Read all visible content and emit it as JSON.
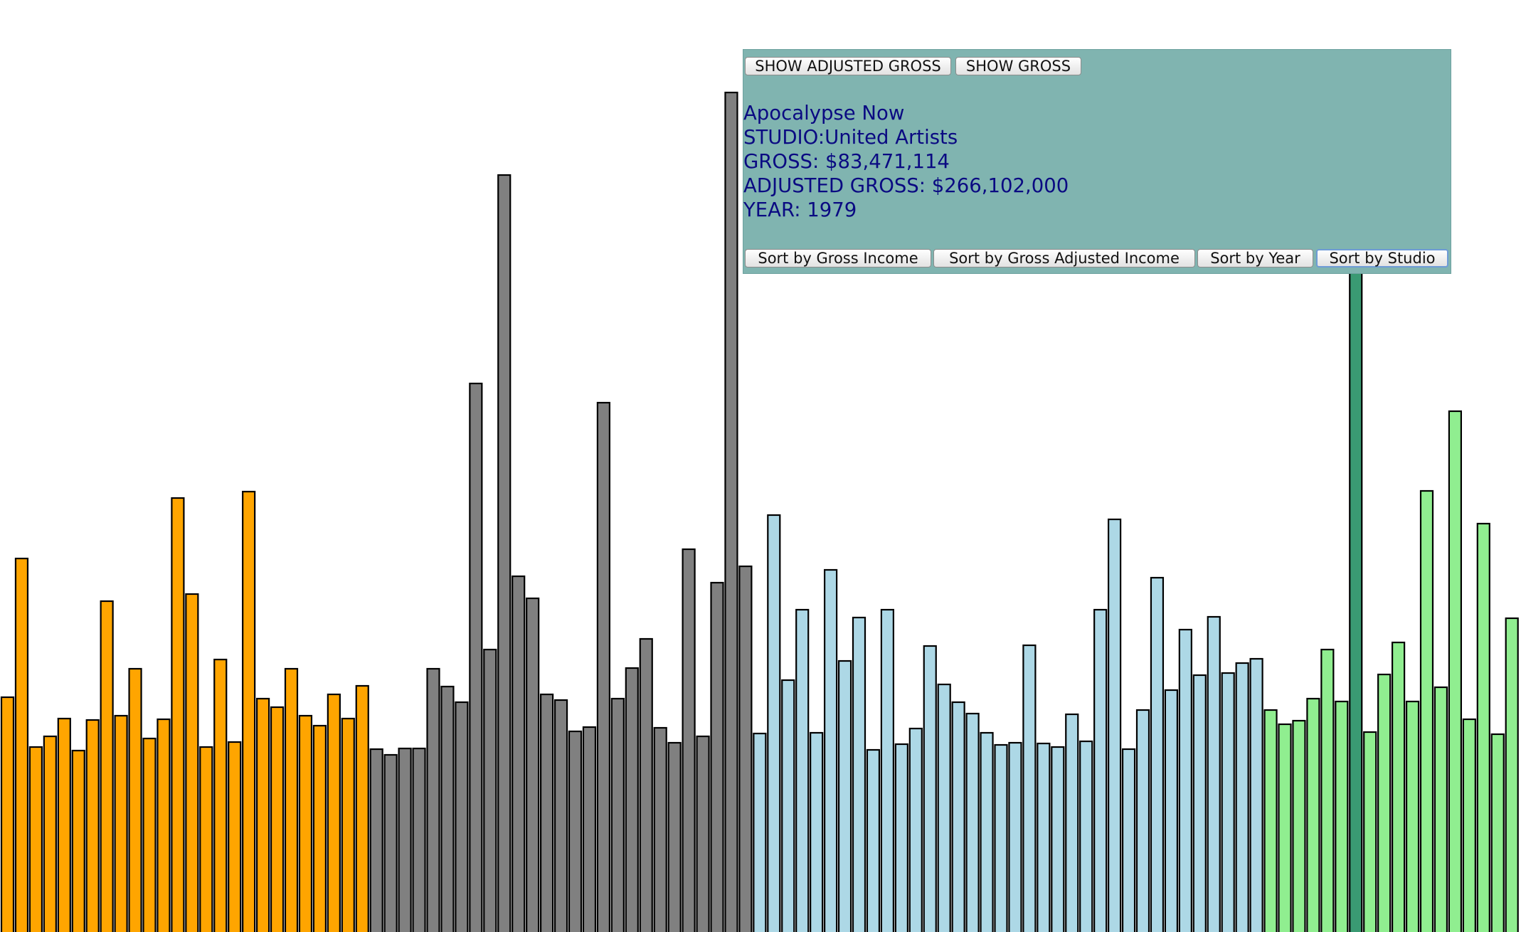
{
  "controls": {
    "show_adjusted_gross": "SHOW ADJUSTED GROSS",
    "show_gross": "SHOW GROSS",
    "sort_gross": "Sort by Gross Income",
    "sort_adjusted": "Sort by Gross Adjusted Income",
    "sort_year": "Sort by Year",
    "sort_studio": "Sort by Studio",
    "active_sort": "Sort by Studio"
  },
  "info": {
    "title": "Apocalypse Now",
    "studio": "STUDIO:United Artists",
    "gross": "GROSS: $83,471,114",
    "adjusted": "ADJUSTED GROSS: $266,102,000",
    "year": "YEAR: 1979"
  },
  "chart_data": {
    "type": "bar",
    "sort": "studio",
    "highlighted_index": 95,
    "colors": {
      "group_a": "#FFA500",
      "group_b": "#808080",
      "group_c": "#ADD8E6",
      "group_d": "#90EE90",
      "highlight": "#3a9a73"
    },
    "series": [
      {
        "color": "#FFA500",
        "values": [
          330,
          525,
          260,
          275,
          300,
          255,
          298,
          465,
          304,
          370,
          272,
          299,
          610,
          475,
          260,
          383,
          267,
          619,
          328,
          316,
          370,
          304,
          290,
          334,
          300,
          346
        ]
      },
      {
        "color": "#808080",
        "values": [
          257,
          249,
          258,
          258,
          370,
          345,
          323,
          771,
          397,
          1064,
          500,
          469,
          334,
          326,
          282,
          288,
          744,
          328,
          371,
          412,
          287,
          266,
          538,
          275,
          491,
          1180,
          514
        ]
      },
      {
        "color": "#ADD8E6",
        "values": [
          279,
          586,
          354,
          453,
          280,
          509,
          381,
          442,
          256,
          453,
          264,
          286,
          402,
          348,
          323,
          307,
          280,
          263,
          266,
          403,
          265,
          260,
          306,
          268,
          453,
          580,
          257,
          312,
          498,
          340,
          425,
          361,
          443,
          364,
          378,
          384
        ]
      },
      {
        "color": "#90EE90",
        "values": [
          312,
          292,
          297,
          328,
          397,
          324,
          1104,
          281,
          362,
          407,
          324,
          620,
          344,
          732,
          299,
          574,
          278,
          441
        ]
      }
    ],
    "ylim": [
      0,
      1310
    ]
  }
}
